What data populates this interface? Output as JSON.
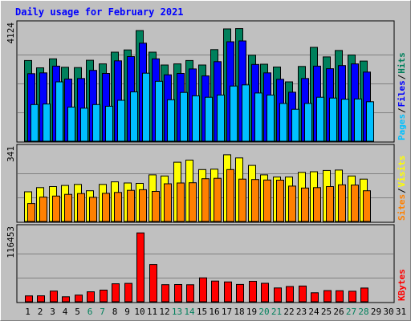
{
  "colors": {
    "hits": "#00805c",
    "files": "#0000ff",
    "pages": "#00c0ff",
    "visits": "#ffff00",
    "sites": "#ff8000",
    "kbytes": "#ff0000",
    "title": "#0000ff",
    "weekend": "#00805c",
    "panel": "#c0c0c0"
  },
  "chart_data": {
    "type": "bar",
    "title": "Daily usage for February 2021",
    "days": [
      "1",
      "2",
      "3",
      "4",
      "5",
      "6",
      "7",
      "8",
      "9",
      "10",
      "11",
      "12",
      "13",
      "14",
      "15",
      "16",
      "17",
      "18",
      "19",
      "20",
      "21",
      "22",
      "23",
      "24",
      "25",
      "26",
      "27",
      "28",
      "29",
      "30",
      "31"
    ],
    "weekend_days": [
      6,
      7,
      13,
      14,
      20,
      21,
      27,
      28
    ],
    "panels": [
      {
        "id": "hits",
        "max_label": "4124",
        "ylim": [
          0,
          4124
        ],
        "legend": [
          "Pages",
          "/",
          "Files",
          "/",
          "Hits"
        ],
        "series": [
          {
            "name": "Hits",
            "values": [
              2880,
              2620,
              2940,
              2640,
              2630,
              2890,
              2760,
              3180,
              3260,
              3950,
              3180,
              2720,
              2760,
              2880,
              2720,
              3270,
              4010,
              4020,
              3070,
              2750,
              2650,
              2120,
              2670,
              3350,
              3010,
              3240,
              3080,
              2860
            ]
          },
          {
            "name": "Files",
            "values": [
              2410,
              2440,
              2680,
              2220,
              2240,
              2530,
              2420,
              2870,
              3020,
              3500,
              2940,
              2370,
              2420,
              2580,
              2330,
              2840,
              3550,
              3580,
              2740,
              2440,
              2210,
              1750,
              2240,
              2680,
              2590,
              2700,
              2760,
              2470
            ]
          },
          {
            "name": "Pages",
            "values": [
              1310,
              1330,
              2120,
              1220,
              1180,
              1310,
              1250,
              1460,
              1760,
              2430,
              2140,
              1480,
              1740,
              1620,
              1570,
              1650,
              1970,
              2010,
              1720,
              1650,
              1350,
              1140,
              1350,
              1570,
              1540,
              1500,
              1510,
              1410
            ]
          }
        ]
      },
      {
        "id": "visits",
        "max_label": "341",
        "ylim": [
          0,
          341
        ],
        "legend": [
          "Sites",
          "/",
          "Visits"
        ],
        "series": [
          {
            "name": "Visits",
            "values": [
              140,
              160,
              165,
              170,
              175,
              145,
              175,
              187,
              182,
              180,
              220,
              215,
              280,
              290,
              245,
              247,
              315,
              300,
              265,
              220,
              210,
              210,
              232,
              235,
              241,
              243,
              215,
              200
            ]
          },
          {
            "name": "Sites",
            "values": [
              85,
              115,
              120,
              128,
              132,
              114,
              133,
              137,
              147,
              150,
              142,
              178,
              182,
              183,
              202,
              204,
              245,
              200,
              198,
              196,
              195,
              167,
              158,
              160,
              165,
              173,
              172,
              145
            ]
          }
        ]
      },
      {
        "id": "kbytes",
        "max_label": "116453",
        "ylim": [
          0,
          116453
        ],
        "legend": [
          "KBytes"
        ],
        "series": [
          {
            "name": "KBytes",
            "values": [
              9500,
              9600,
              17200,
              8000,
              10800,
              16000,
              18800,
              29000,
              29600,
              111000,
              60000,
              27600,
              27800,
              27400,
              38600,
              33400,
              32000,
              28000,
              33000,
              29700,
              22300,
              24600,
              25400,
              14500,
              18000,
              17700,
              16900,
              22100
            ]
          }
        ]
      }
    ]
  }
}
